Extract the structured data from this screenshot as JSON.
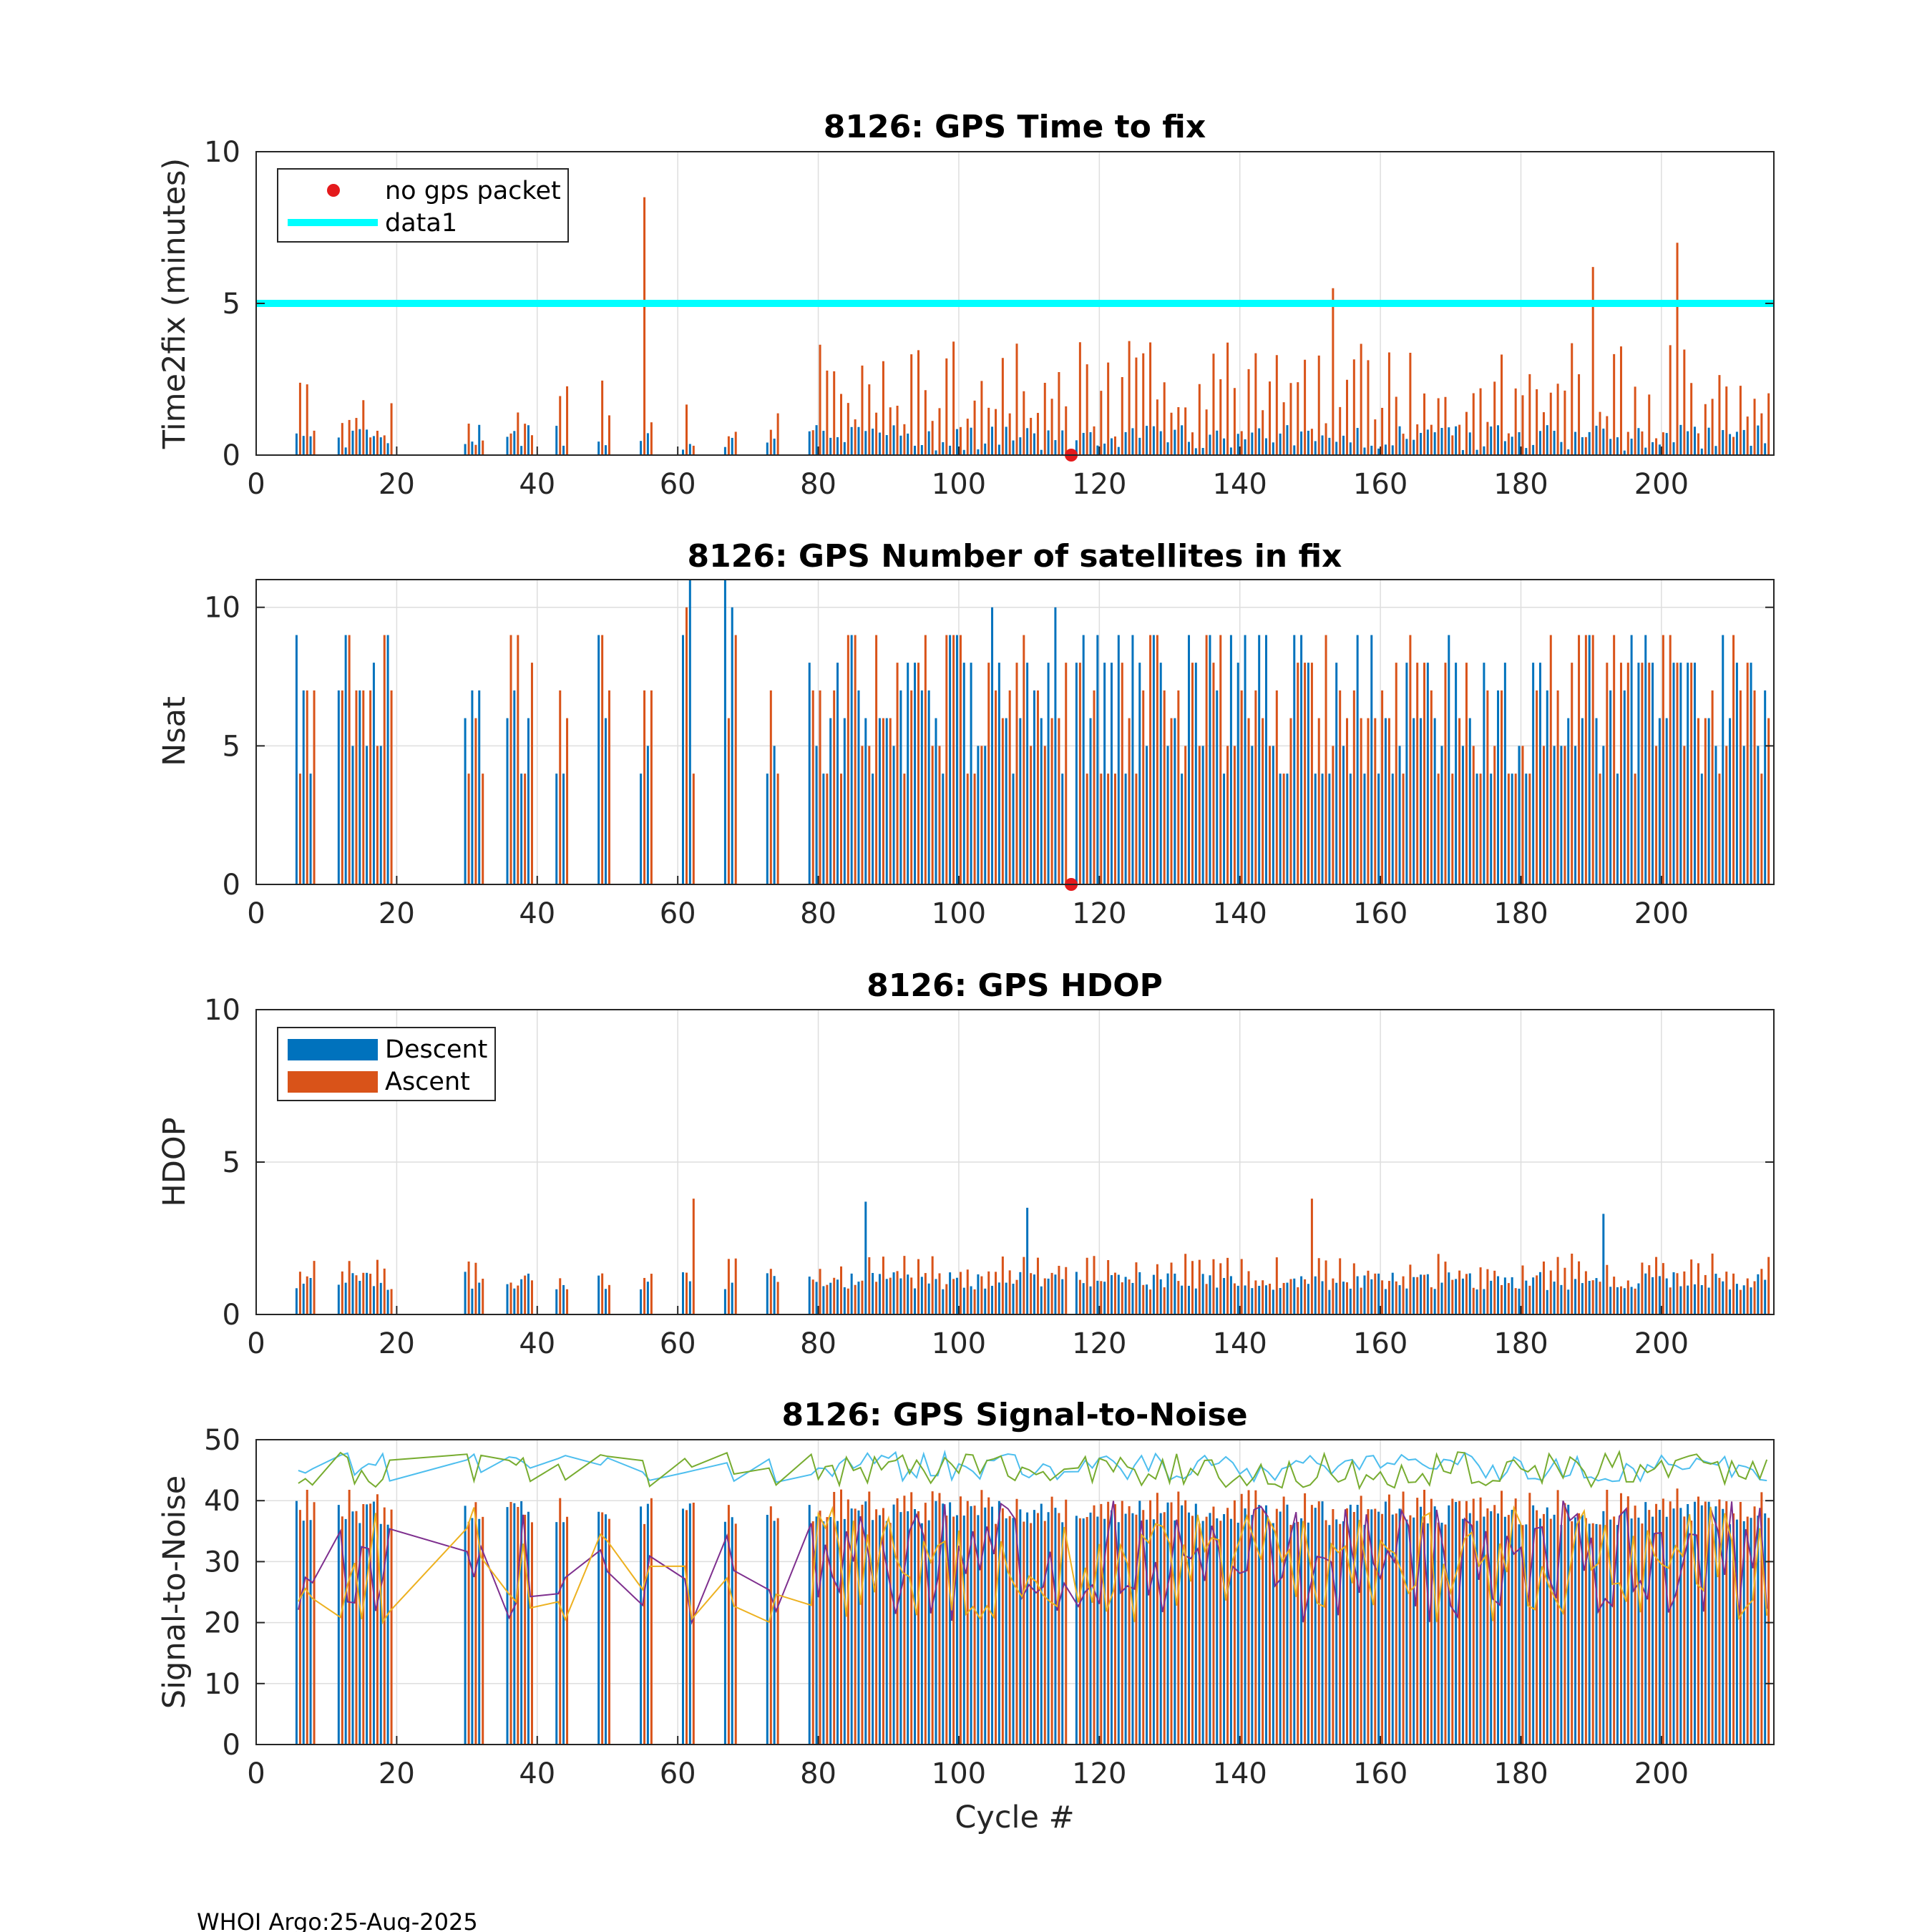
{
  "footer": "WHOI Argo:25-Aug-2025",
  "colors": {
    "descent": "#0072BD",
    "ascent": "#D95319",
    "cyan": "#00FFFF",
    "red_marker": "#E41A1C",
    "snr_lines": [
      "#4DBEEE",
      "#77AC30",
      "#7E2F8E",
      "#EDB120"
    ]
  },
  "chart_data": [
    {
      "type": "bar",
      "title": "8126: GPS Time to fix",
      "ylabel": "Time2fix (minutes)",
      "xlabel": "",
      "xlim": [
        0,
        216
      ],
      "ylim": [
        0,
        10
      ],
      "xticks": [
        "0",
        "20",
        "40",
        "60",
        "80",
        "100",
        "120",
        "140",
        "160",
        "180",
        "200"
      ],
      "yticks": [
        "0",
        "5",
        "10"
      ],
      "legend": {
        "placement": "top-left",
        "entries": [
          "no gps packet",
          "data1"
        ]
      },
      "reference_line": {
        "name": "data1",
        "y": 5
      },
      "no_gps_packet": {
        "x": 116,
        "y": 0
      },
      "highlight_values": [
        {
          "x": 55,
          "ascent": 8.5
        },
        {
          "x": 153,
          "ascent": 5.5
        },
        {
          "x": 190,
          "ascent": 6.2
        },
        {
          "x": 202,
          "ascent": 7.0
        }
      ],
      "series": [
        {
          "name": "Descent",
          "values": "typical 0.2–1.0 min per cycle (see script)"
        },
        {
          "name": "Ascent",
          "values": "typical 0.5–4.2 min per cycle (see script)"
        }
      ]
    },
    {
      "type": "bar",
      "title": "8126: GPS Number of satellites in fix",
      "ylabel": "Nsat",
      "xlabel": "",
      "xlim": [
        0,
        216
      ],
      "ylim": [
        0,
        11
      ],
      "xticks": [
        "0",
        "20",
        "40",
        "60",
        "80",
        "100",
        "120",
        "140",
        "160",
        "180",
        "200"
      ],
      "yticks": [
        "0",
        "5",
        "10"
      ],
      "no_gps_packet": {
        "x": 116,
        "y": 0
      },
      "series": [
        {
          "name": "Descent",
          "values": "4–11 satellites per cycle"
        },
        {
          "name": "Ascent",
          "values": "4–10 satellites per cycle"
        }
      ]
    },
    {
      "type": "bar",
      "title": "8126: GPS HDOP",
      "ylabel": "HDOP",
      "xlabel": "",
      "xlim": [
        0,
        216
      ],
      "ylim": [
        0,
        10
      ],
      "xticks": [
        "0",
        "20",
        "40",
        "60",
        "80",
        "100",
        "120",
        "140",
        "160",
        "180",
        "200"
      ],
      "yticks": [
        "0",
        "5",
        "10"
      ],
      "legend": {
        "placement": "top-left",
        "entries": [
          "Descent",
          "Ascent"
        ]
      },
      "highlight_values": [
        {
          "x": 62,
          "ascent": 3.8
        },
        {
          "x": 150,
          "ascent": 3.8
        },
        {
          "x": 87,
          "descent": 3.7
        },
        {
          "x": 110,
          "descent": 3.5
        },
        {
          "x": 192,
          "descent": 3.3
        }
      ],
      "series": [
        {
          "name": "Descent",
          "values": "typical 0.8–1.5"
        },
        {
          "name": "Ascent",
          "values": "typical 0.8–2.5"
        }
      ]
    },
    {
      "type": "bar",
      "title": "8126: GPS Signal-to-Noise",
      "ylabel": "Signal-to-Noise",
      "xlabel": "Cycle #",
      "xlim": [
        0,
        216
      ],
      "ylim": [
        0,
        50
      ],
      "xticks": [
        "0",
        "20",
        "40",
        "60",
        "80",
        "100",
        "120",
        "140",
        "160",
        "180",
        "200"
      ],
      "yticks": [
        "0",
        "10",
        "20",
        "30",
        "40",
        "50"
      ],
      "series": [
        {
          "name": "Descent mean",
          "values": "bars ~36–40"
        },
        {
          "name": "Ascent mean",
          "values": "bars ~36–43"
        },
        {
          "name": "max (light blue)",
          "values": "~43–49"
        },
        {
          "name": "max (green)",
          "values": "~41–49"
        },
        {
          "name": "min (purple)",
          "values": "~18–43"
        },
        {
          "name": "min (yellow)",
          "values": "~18–40"
        }
      ]
    }
  ]
}
